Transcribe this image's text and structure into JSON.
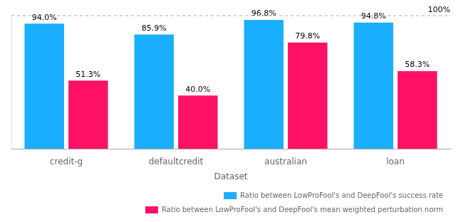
{
  "chart_data": {
    "type": "bar",
    "xlabel": "Dataset",
    "annotations": [
      "100%"
    ],
    "categories": [
      "credit-g",
      "defaultcredit",
      "australian",
      "loan"
    ],
    "series": [
      {
        "name": "Ratio between LowProFool's and DeepFool's success rate",
        "color": "#1aaeff",
        "values": [
          94.0,
          85.9,
          96.8,
          94.8
        ],
        "value_labels": [
          "94.0%",
          "85.9%",
          "96.8%",
          "94.8%"
        ]
      },
      {
        "name": "Ratio between LowProFool's and DeepFool's mean weighted perturbation norm",
        "color": "#ff1166",
        "values": [
          51.3,
          40.0,
          79.8,
          58.3
        ],
        "value_labels": [
          "51.3%",
          "40.0%",
          "79.8%",
          "58.3%"
        ]
      }
    ],
    "ylim": [
      0,
      100
    ],
    "yticks": [],
    "grid": false,
    "legend": "lower right",
    "data_labels": true,
    "tick_labels": "x"
  }
}
